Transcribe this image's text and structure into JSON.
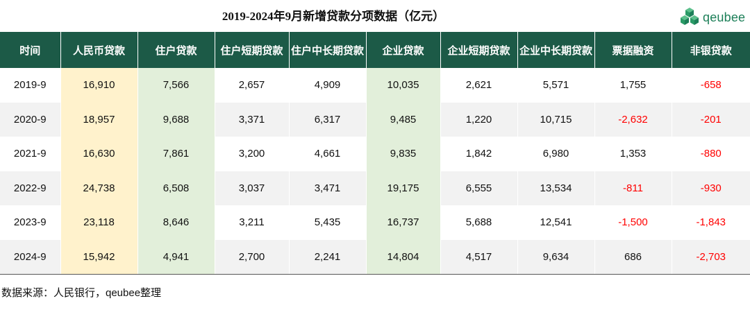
{
  "chart_data": {
    "type": "table",
    "title": "2019-2024年9月新增贷款分项数据（亿元）",
    "columns": [
      "时间",
      "人民币贷款",
      "住户贷款",
      "住户短期贷款",
      "住户中长期贷款",
      "企业贷款",
      "企业短期贷款",
      "企业中长期贷款",
      "票据融资",
      "非银贷款"
    ],
    "rows": [
      [
        "2019-9",
        "16,910",
        "7,566",
        "2,657",
        "4,909",
        "10,035",
        "2,621",
        "5,571",
        "1,755",
        "-658"
      ],
      [
        "2020-9",
        "18,957",
        "9,688",
        "3,371",
        "6,317",
        "9,485",
        "1,220",
        "10,715",
        "-2,632",
        "-201"
      ],
      [
        "2021-9",
        "16,630",
        "7,861",
        "3,200",
        "4,661",
        "9,835",
        "1,842",
        "6,980",
        "1,353",
        "-880"
      ],
      [
        "2022-9",
        "24,738",
        "6,508",
        "3,037",
        "3,471",
        "19,175",
        "6,555",
        "13,534",
        "-811",
        "-930"
      ],
      [
        "2023-9",
        "23,118",
        "8,646",
        "3,211",
        "5,435",
        "16,737",
        "5,688",
        "12,541",
        "-1,500",
        "-1,843"
      ],
      [
        "2024-9",
        "15,942",
        "4,941",
        "2,700",
        "2,241",
        "14,804",
        "4,517",
        "9,634",
        "686",
        "-2,703"
      ]
    ],
    "source": "数据来源：人民银行，qeubee整理"
  },
  "logo": {
    "text": "qeubee",
    "icon": "cube-cluster-logo-icon",
    "color": "#1c7f58"
  },
  "colors": {
    "header_bg": "#1c5a47",
    "rmb_column_bg": "#fff2cc",
    "highlight_column_bg": "#e2efda",
    "stripe_bg": "#f2f2f2",
    "negative_text": "#ff0000"
  }
}
